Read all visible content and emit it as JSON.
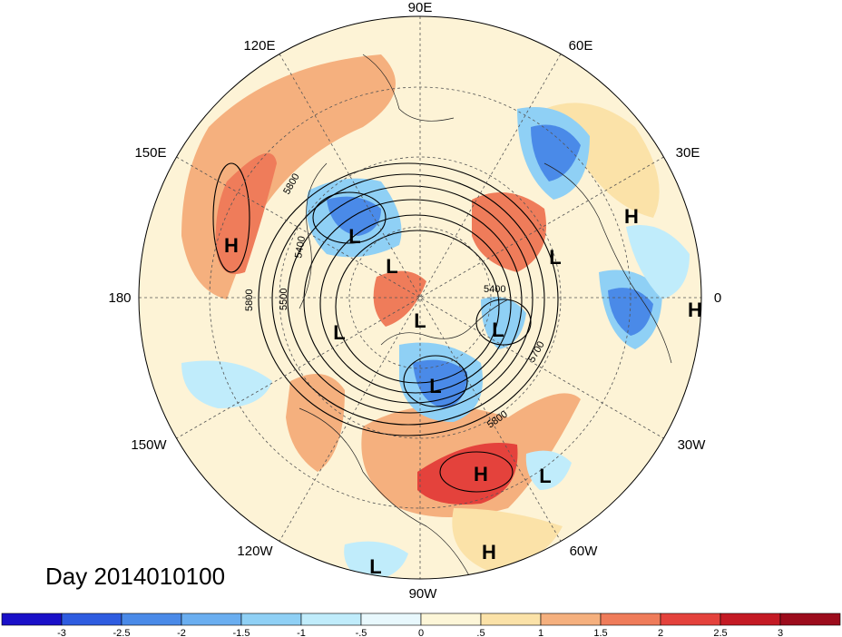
{
  "title": "Day 2014010100",
  "lon_labels": [
    {
      "id": "90e",
      "text": "90E"
    },
    {
      "id": "60e",
      "text": "60E"
    },
    {
      "id": "30e",
      "text": "30E"
    },
    {
      "id": "0",
      "text": "0"
    },
    {
      "id": "30w",
      "text": "30W"
    },
    {
      "id": "60w",
      "text": "60W"
    },
    {
      "id": "90w",
      "text": "90W"
    },
    {
      "id": "120w",
      "text": "120W"
    },
    {
      "id": "150w",
      "text": "150W"
    },
    {
      "id": "180",
      "text": "180"
    },
    {
      "id": "150e",
      "text": "150E"
    },
    {
      "id": "120e",
      "text": "120E"
    }
  ],
  "pressure_centers": [
    {
      "type": "H",
      "label": "H"
    },
    {
      "type": "L",
      "label": "L"
    },
    {
      "type": "L",
      "label": "L"
    },
    {
      "type": "L",
      "label": "L"
    },
    {
      "type": "L",
      "label": "L"
    },
    {
      "type": "L",
      "label": "L"
    },
    {
      "type": "L",
      "label": "L"
    },
    {
      "type": "H",
      "label": "H"
    },
    {
      "type": "L",
      "label": "L"
    },
    {
      "type": "H",
      "label": "H"
    },
    {
      "type": "H",
      "label": "H"
    },
    {
      "type": "L",
      "label": "L"
    },
    {
      "type": "H",
      "label": "H"
    },
    {
      "type": "L",
      "label": "L"
    }
  ],
  "contour_labels": [
    "5800",
    "5400",
    "5500",
    "5800",
    "5400",
    "5700",
    "5800"
  ],
  "colorbar": {
    "ticks": [
      "-3",
      "-2.5",
      "-2",
      "-1.5",
      "-1",
      "-.5",
      "0",
      ".5",
      "1",
      "1.5",
      "2",
      "2.5",
      "3"
    ],
    "colors": [
      "#1a10c8",
      "#2e5ce0",
      "#4a8ae8",
      "#6aaef0",
      "#8fd0f5",
      "#c0ecfb",
      "#e8f8fd",
      "#fdf6d8",
      "#fbe2a8",
      "#f5b07e",
      "#ef7c5a",
      "#e4423c",
      "#c41a24",
      "#9c0c1c"
    ]
  }
}
